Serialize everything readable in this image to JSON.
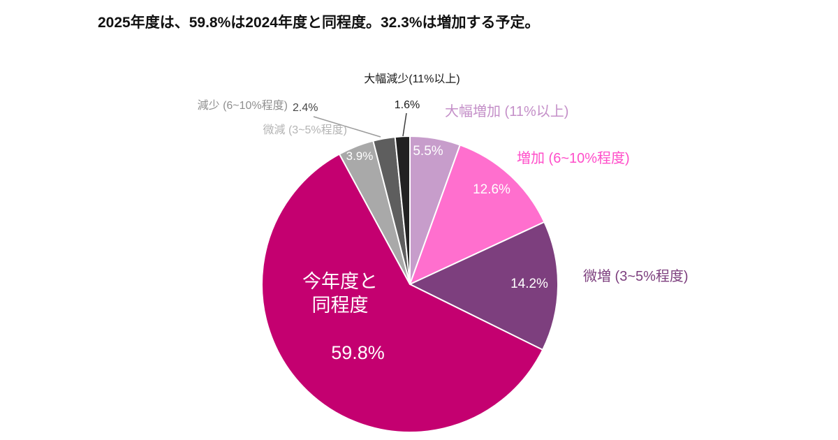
{
  "title": "2025年度は、59.8%は2024年度と同程度。32.3%は増加する予定。",
  "chart_data": {
    "type": "pie",
    "title": "2025年度は、59.8%は2024年度と同程度。32.3%は増加する予定。",
    "unit": "%",
    "direction": "clockwise",
    "start_angle": "top",
    "legend_position": "none",
    "segments": [
      {
        "id": "large-increase",
        "label": "大幅増加 (11%以上)",
        "value": 5.5,
        "display": "5.5%",
        "color": "#c79dcb",
        "label_color": "#c48fc8",
        "value_color": "#ffffff"
      },
      {
        "id": "increase",
        "label": "増加 (6~10%程度)",
        "value": 12.6,
        "display": "12.6%",
        "color": "#ff6fce",
        "label_color": "#ff4ec9",
        "value_color": "#ffffff"
      },
      {
        "id": "slight-increase",
        "label": "微増 (3~5%程度)",
        "value": 14.2,
        "display": "14.2%",
        "color": "#7d3f7e",
        "label_color": "#7d3f7e",
        "value_color": "#ffffff"
      },
      {
        "id": "same-level",
        "label": "今年度と同程度",
        "label_lines": [
          "今年度と",
          "同程度"
        ],
        "value": 59.8,
        "display": "59.8%",
        "color": "#c40070",
        "label_color": "#ffffff",
        "value_color": "#ffffff"
      },
      {
        "id": "slight-decrease",
        "label": "微減 (3~5%程度)",
        "value": 3.9,
        "display": "3.9%",
        "color": "#a9a9a9",
        "label_color": "#b4b4b4",
        "value_color": "#ffffff"
      },
      {
        "id": "decrease",
        "label": "減少 (6~10%程度)",
        "value": 2.4,
        "display": "2.4%",
        "color": "#5e5e5e",
        "label_color": "#8f8f8f",
        "value_color": "#474747"
      },
      {
        "id": "large-decrease",
        "label": "大幅減少(11%以上)",
        "value": 1.6,
        "display": "1.6%",
        "color": "#222222",
        "label_color": "#1a1a1a",
        "value_color": "#1a1a1a"
      }
    ]
  }
}
